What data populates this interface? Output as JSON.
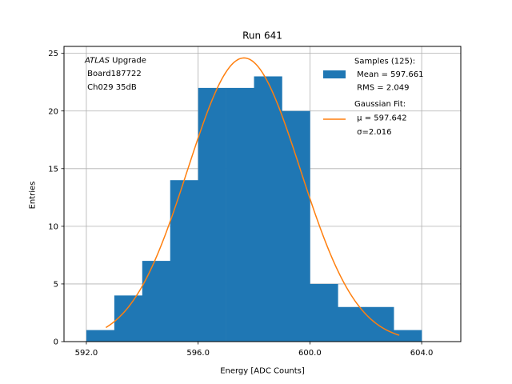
{
  "chart_data": {
    "type": "bar",
    "title": "Run 641",
    "xlabel": "Energy [ADC Counts]",
    "ylabel": "Entries",
    "xlim": [
      591.2,
      605.4
    ],
    "ylim": [
      0,
      25.6
    ],
    "xticks": [
      592,
      596,
      600,
      604
    ],
    "xtick_labels": [
      "592.0",
      "596.0",
      "600.0",
      "604.0"
    ],
    "yticks": [
      0,
      5,
      10,
      15,
      20,
      25
    ],
    "ytick_labels": [
      "0",
      "5",
      "10",
      "15",
      "20",
      "25"
    ],
    "grid": true,
    "histogram": {
      "name": "Samples (125):",
      "color": "#1f77b4",
      "bin_edges": [
        592,
        593,
        594,
        595,
        596,
        597,
        598,
        599,
        600,
        601,
        602,
        603,
        604
      ],
      "counts": [
        1,
        4,
        7,
        14,
        22,
        22,
        23,
        20,
        5,
        3,
        3,
        1
      ]
    },
    "fit": {
      "name": "Gaussian Fit:",
      "color": "#ff7f0e",
      "mu": 597.642,
      "sigma": 2.016,
      "amplitude": 24.6,
      "x_range": [
        592.7,
        603.2
      ]
    },
    "legend": {
      "position": "top-right",
      "entries": [
        {
          "lines": [
            "Samples (125):",
            " Mean = 597.661",
            " RMS = 2.049"
          ]
        },
        {
          "lines": [
            "Gaussian Fit:",
            " μ = 597.642",
            " σ=2.016"
          ]
        }
      ]
    },
    "annotation": {
      "position": "top-left",
      "italic": "ATLAS",
      "first_line_rest": " Upgrade",
      "lines": [
        " Board187722",
        " Ch029 35dB"
      ]
    }
  }
}
